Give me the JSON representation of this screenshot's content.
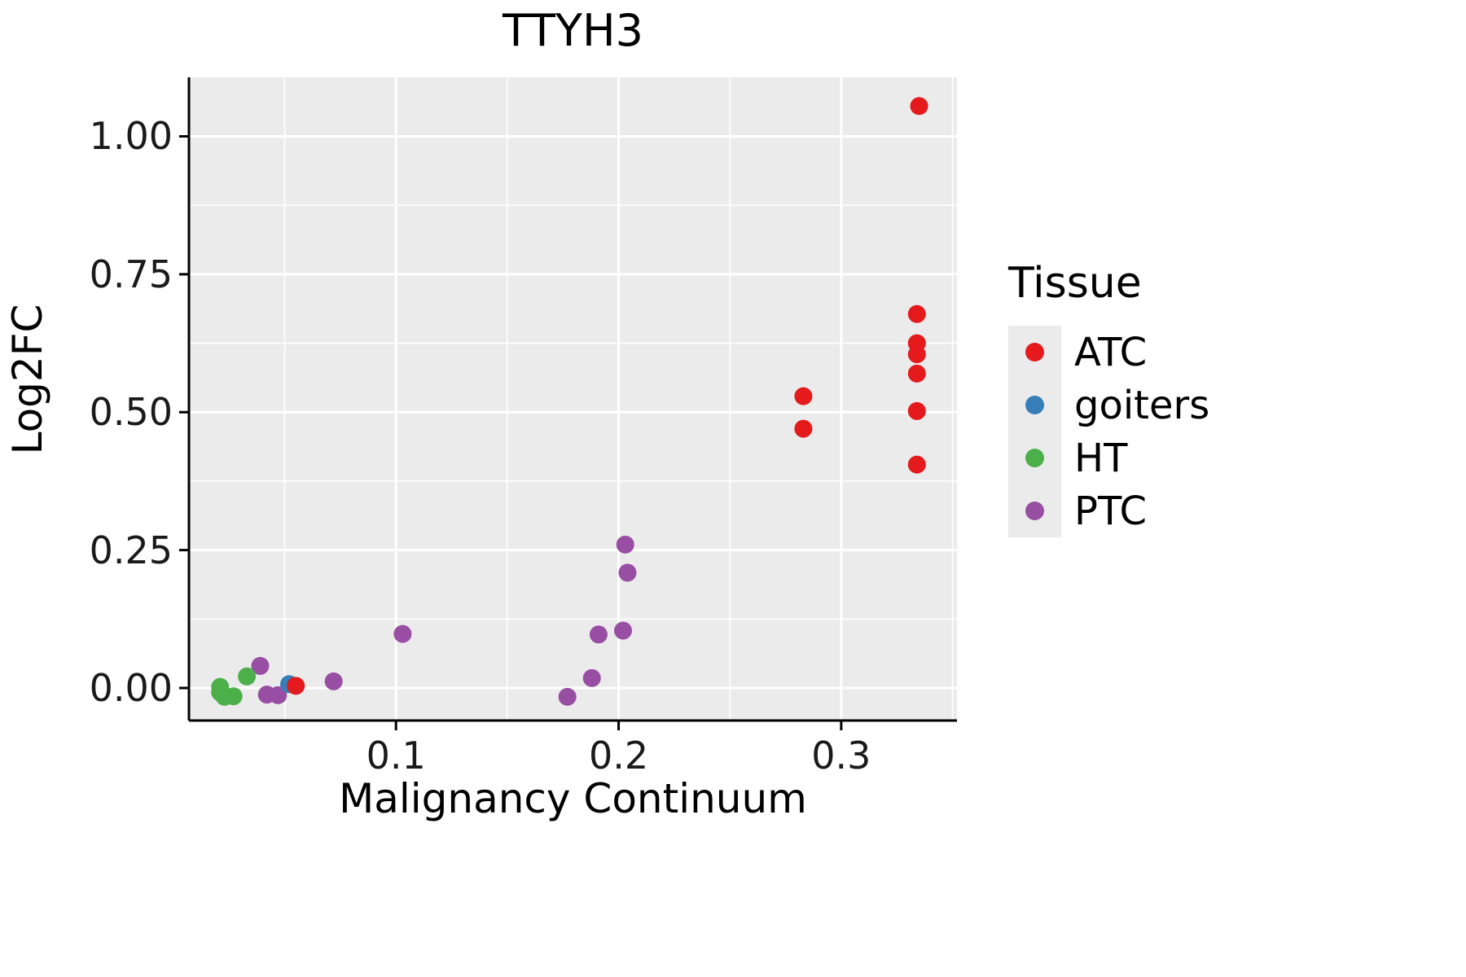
{
  "chart_data": {
    "type": "scatter",
    "title": "TTYH3",
    "xlabel": "Malignancy Continuum",
    "ylabel": "Log2FC",
    "legend_title": "Tissue",
    "legend_position": "right",
    "grid": true,
    "panel_bg": "#ebebeb",
    "grid_color": "#ffffff",
    "axis_color": "#000000",
    "xlim": [
      0.007,
      0.352
    ],
    "ylim": [
      -0.059,
      1.107
    ],
    "x_ticks": [
      0.1,
      0.2,
      0.3
    ],
    "x_tick_labels": [
      "0.1",
      "0.2",
      "0.3"
    ],
    "y_ticks": [
      0.0,
      0.25,
      0.5,
      0.75,
      1.0
    ],
    "y_tick_labels": [
      "0.00",
      "0.25",
      "0.50",
      "0.75",
      "1.00"
    ],
    "series": [
      {
        "name": "ATC",
        "color": "#e41a1c",
        "points": [
          [
            0.335,
            1.055
          ],
          [
            0.334,
            0.678
          ],
          [
            0.334,
            0.625
          ],
          [
            0.334,
            0.605
          ],
          [
            0.334,
            0.57
          ],
          [
            0.334,
            0.502
          ],
          [
            0.334,
            0.405
          ],
          [
            0.283,
            0.529
          ],
          [
            0.283,
            0.47
          ],
          [
            0.055,
            0.004
          ]
        ]
      },
      {
        "name": "goiters",
        "color": "#377eb8",
        "points": [
          [
            0.052,
            0.007
          ]
        ]
      },
      {
        "name": "HT",
        "color": "#4daf4a",
        "points": [
          [
            0.021,
            0.002
          ],
          [
            0.021,
            -0.008
          ],
          [
            0.023,
            -0.016
          ],
          [
            0.027,
            -0.015
          ],
          [
            0.033,
            0.021
          ]
        ]
      },
      {
        "name": "PTC",
        "color": "#984ea3",
        "points": [
          [
            0.039,
            0.04
          ],
          [
            0.042,
            -0.012
          ],
          [
            0.047,
            -0.013
          ],
          [
            0.072,
            0.012
          ],
          [
            0.103,
            0.098
          ],
          [
            0.177,
            -0.016
          ],
          [
            0.188,
            0.018
          ],
          [
            0.191,
            0.097
          ],
          [
            0.202,
            0.104
          ],
          [
            0.203,
            0.26
          ],
          [
            0.204,
            0.209
          ]
        ]
      }
    ]
  }
}
